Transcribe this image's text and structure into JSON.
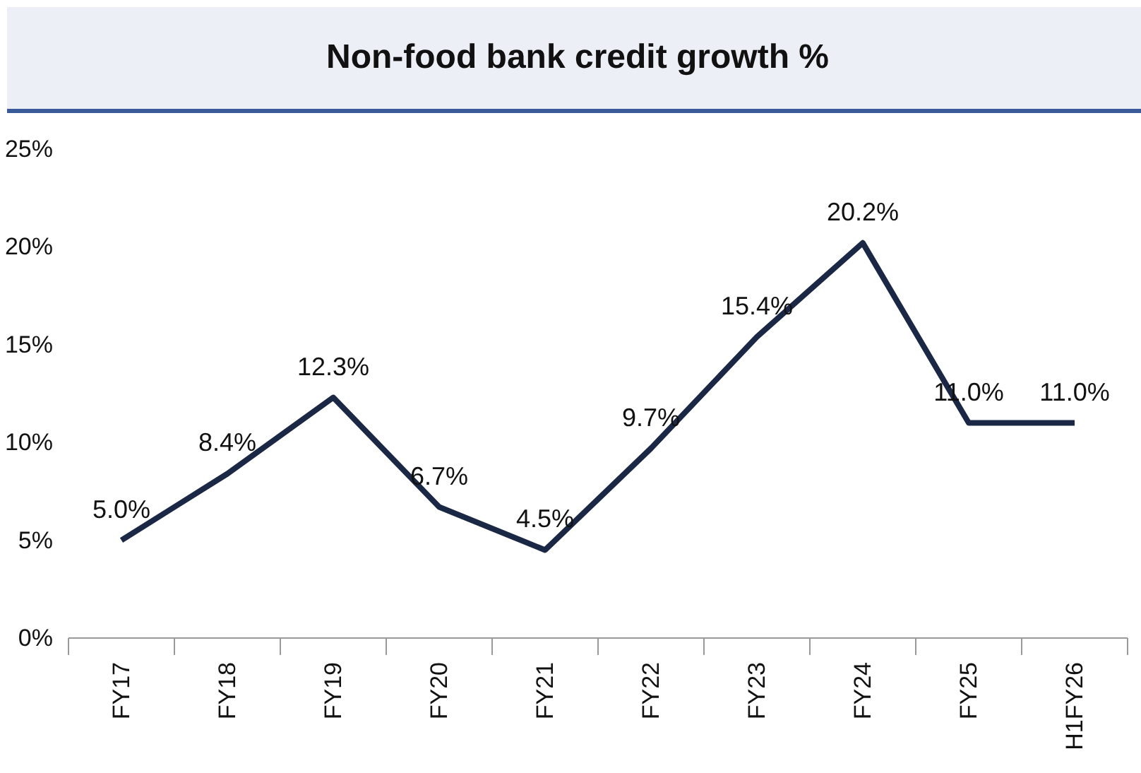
{
  "chart_data": {
    "type": "line",
    "title": "Non-food bank credit growth %",
    "categories": [
      "FY17",
      "FY18",
      "FY19",
      "FY20",
      "FY21",
      "FY22",
      "FY23",
      "FY24",
      "FY25",
      "H1FY26"
    ],
    "series": [
      {
        "color": "#1b2845",
        "values": [
          5.0,
          8.4,
          12.3,
          6.7,
          4.5,
          9.7,
          15.4,
          20.2,
          11.0,
          11.0
        ]
      }
    ],
    "ylim": [
      0,
      25
    ],
    "yticks": [
      {
        "value": 0,
        "label": "0%"
      },
      {
        "value": 5,
        "label": "5%"
      },
      {
        "value": 10,
        "label": "10%"
      },
      {
        "value": 15,
        "label": "15%"
      },
      {
        "value": 20,
        "label": "20%"
      },
      {
        "value": 25,
        "label": "25%"
      }
    ],
    "value_labels": [
      "5.0%",
      "8.4%",
      "12.3%",
      "6.7%",
      "4.5%",
      "9.7%",
      "15.4%",
      "20.2%",
      "11.0%",
      "11.0%"
    ],
    "grid": false,
    "marker": "none",
    "line_style": "solid"
  }
}
